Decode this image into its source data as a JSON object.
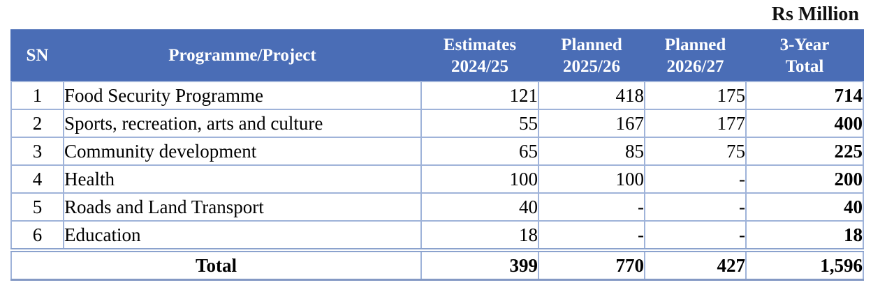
{
  "unit_label": "Rs Million",
  "accent_color": "#4a6db6",
  "border_color": "#9fb3d9",
  "columns": {
    "sn": "SN",
    "programme": "Programme/Project",
    "estimates_line1": "Estimates",
    "estimates_line2": "2024/25",
    "planned1_line1": "Planned",
    "planned1_line2": "2025/26",
    "planned2_line1": "Planned",
    "planned2_line2": "2026/27",
    "total_line1": "3-Year",
    "total_line2": "Total"
  },
  "rows": [
    {
      "sn": "1",
      "programme": "Food Security Programme",
      "estimates": "121",
      "planned1": "418",
      "planned2": "175",
      "total": "714"
    },
    {
      "sn": "2",
      "programme": "Sports, recreation, arts and culture",
      "estimates": "55",
      "planned1": "167",
      "planned2": "177",
      "total": "400"
    },
    {
      "sn": "3",
      "programme": "Community development",
      "estimates": "65",
      "planned1": "85",
      "planned2": "75",
      "total": "225"
    },
    {
      "sn": "4",
      "programme": "Health",
      "estimates": "100",
      "planned1": "100",
      "planned2": "-",
      "total": "200"
    },
    {
      "sn": "5",
      "programme": "Roads and Land Transport",
      "estimates": "40",
      "planned1": "-",
      "planned2": "-",
      "total": "40"
    },
    {
      "sn": "6",
      "programme": "Education",
      "estimates": "18",
      "planned1": "-",
      "planned2": "-",
      "total": "18"
    }
  ],
  "total_row": {
    "label": "Total",
    "estimates": "399",
    "planned1": "770",
    "planned2": "427",
    "total": "1,596"
  }
}
